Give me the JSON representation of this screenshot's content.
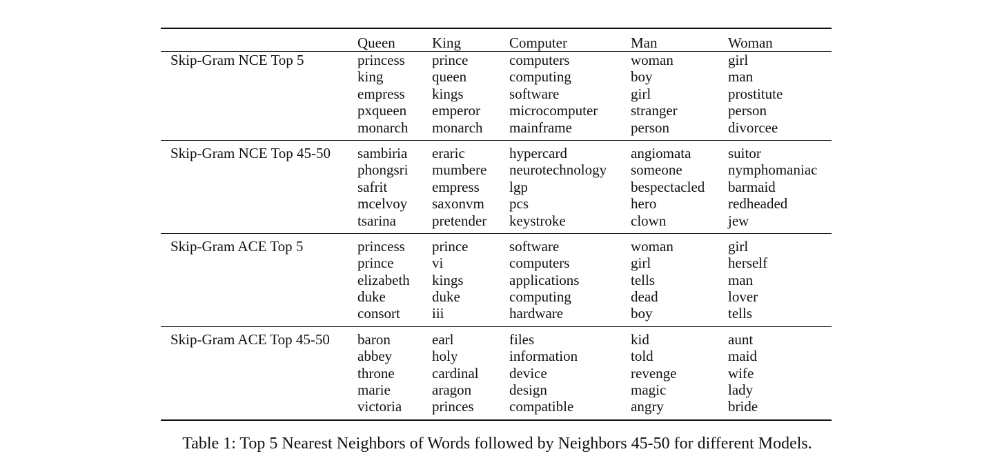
{
  "table": {
    "headers": [
      "",
      "Queen",
      "King",
      "Computer",
      "Man",
      "Woman"
    ],
    "groups": [
      {
        "model": "Skip-Gram NCE Top 5",
        "columns": [
          [
            "princess",
            "king",
            "empress",
            "pxqueen",
            "monarch"
          ],
          [
            "prince",
            "queen",
            "kings",
            "emperor",
            "monarch"
          ],
          [
            "computers",
            "computing",
            "software",
            "microcomputer",
            "mainframe"
          ],
          [
            "woman",
            "boy",
            "girl",
            "stranger",
            "person"
          ],
          [
            "girl",
            "man",
            "prostitute",
            "person",
            "divorcee"
          ]
        ]
      },
      {
        "model": "Skip-Gram NCE Top 45-50",
        "columns": [
          [
            "sambiria",
            "phongsri",
            "safrit",
            "mcelvoy",
            "tsarina"
          ],
          [
            "eraric",
            "mumbere",
            "empress",
            "saxonvm",
            "pretender"
          ],
          [
            "hypercard",
            "neurotechnology",
            "lgp",
            "pcs",
            "keystroke"
          ],
          [
            "angiomata",
            "someone",
            "bespectacled",
            "hero",
            "clown"
          ],
          [
            "suitor",
            "nymphomaniac",
            "barmaid",
            "redheaded",
            "jew"
          ]
        ]
      },
      {
        "model": "Skip-Gram ACE Top 5",
        "columns": [
          [
            "princess",
            "prince",
            "elizabeth",
            "duke",
            "consort"
          ],
          [
            "prince",
            "vi",
            "kings",
            "duke",
            "iii"
          ],
          [
            "software",
            "computers",
            "applications",
            "computing",
            "hardware"
          ],
          [
            "woman",
            "girl",
            "tells",
            "dead",
            "boy"
          ],
          [
            "girl",
            "herself",
            "man",
            "lover",
            "tells"
          ]
        ]
      },
      {
        "model": "Skip-Gram ACE Top 45-50",
        "columns": [
          [
            "baron",
            "abbey",
            "throne",
            "marie",
            "victoria"
          ],
          [
            "earl",
            "holy",
            "cardinal",
            "aragon",
            "princes"
          ],
          [
            "files",
            "information",
            "device",
            "design",
            "compatible"
          ],
          [
            "kid",
            "told",
            "revenge",
            "magic",
            "angry"
          ],
          [
            "aunt",
            "maid",
            "wife",
            "lady",
            "bride"
          ]
        ]
      }
    ]
  },
  "caption": "Table 1: Top 5 Nearest Neighbors of Words followed by Neighbors 45-50 for different Models."
}
